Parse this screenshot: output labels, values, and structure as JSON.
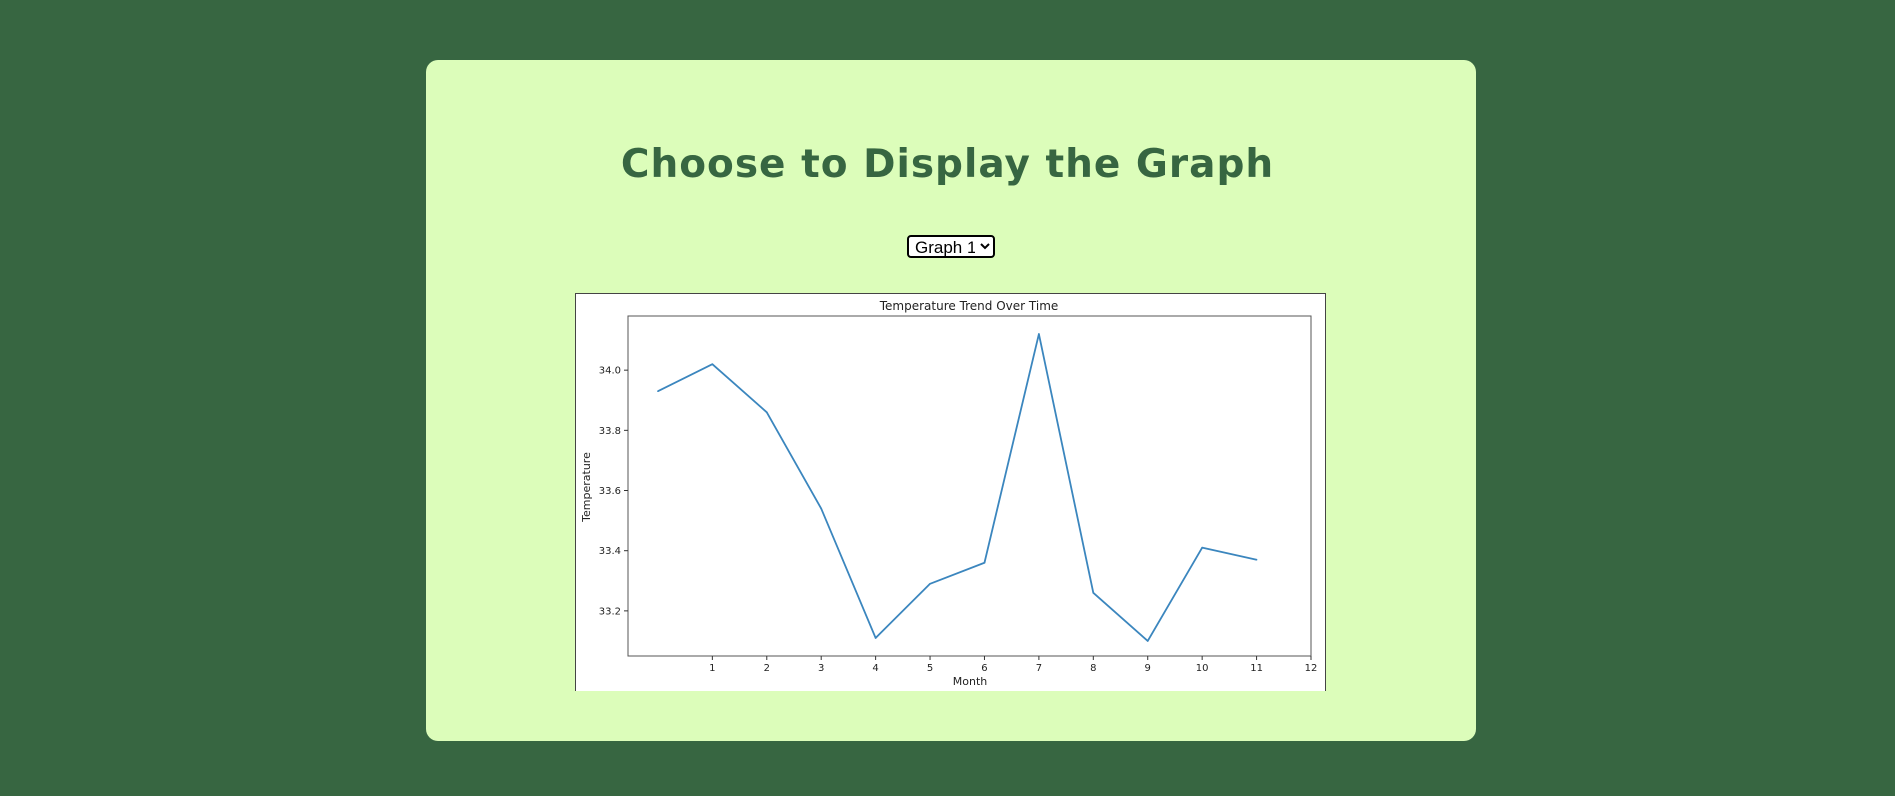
{
  "page": {
    "title": "Choose to Display the Graph"
  },
  "selector": {
    "selected": "Graph 1"
  },
  "colors": {
    "background": "#376641",
    "card": "#dcfdba",
    "title": "#376641",
    "line": "#3b86be"
  },
  "chart_data": {
    "type": "line",
    "title": "Temperature Trend Over Time",
    "xlabel": "Month",
    "ylabel": "Temperature",
    "x": [
      0,
      1,
      2,
      3,
      4,
      5,
      6,
      7,
      8,
      9,
      10,
      11
    ],
    "series": [
      {
        "values": [
          33.93,
          34.02,
          33.86,
          33.54,
          33.11,
          33.29,
          33.36,
          34.12,
          33.26,
          33.1,
          33.41,
          33.37
        ]
      }
    ],
    "xticks": [
      "1",
      "2",
      "3",
      "4",
      "5",
      "6",
      "7",
      "8",
      "9",
      "10",
      "11",
      "12"
    ],
    "yticks": [
      "33.2",
      "33.4",
      "33.6",
      "33.8",
      "34.0"
    ],
    "xlim": [
      -0.55,
      12
    ],
    "ylim": [
      33.05,
      34.18
    ],
    "grid": false
  }
}
